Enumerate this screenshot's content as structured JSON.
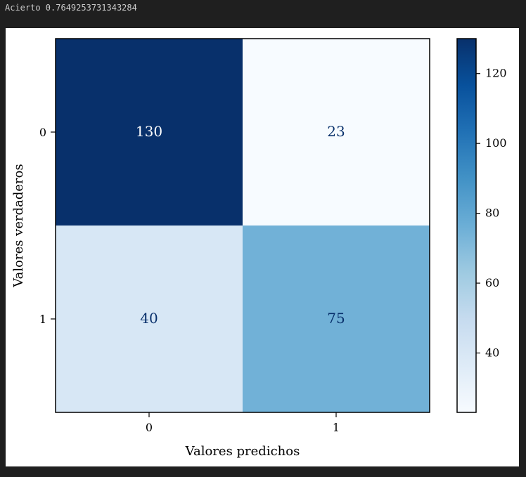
{
  "output": {
    "text": "Acierto 0.7649253731343284"
  },
  "colors": {
    "cmap": "Blues",
    "dark_text": "#08306b",
    "light_text": "#ffffff"
  },
  "chart_data": {
    "type": "heatmap",
    "title": "",
    "xlabel": "Valores predichos",
    "ylabel": "Valores verdaderos",
    "x_categories": [
      "0",
      "1"
    ],
    "y_categories": [
      "0",
      "1"
    ],
    "matrix": [
      [
        130,
        23
      ],
      [
        40,
        75
      ]
    ],
    "colorbar": {
      "range": [
        23,
        130
      ],
      "ticks": [
        40,
        60,
        80,
        100,
        120
      ]
    },
    "grid": false,
    "legend": "colorbar-right"
  }
}
